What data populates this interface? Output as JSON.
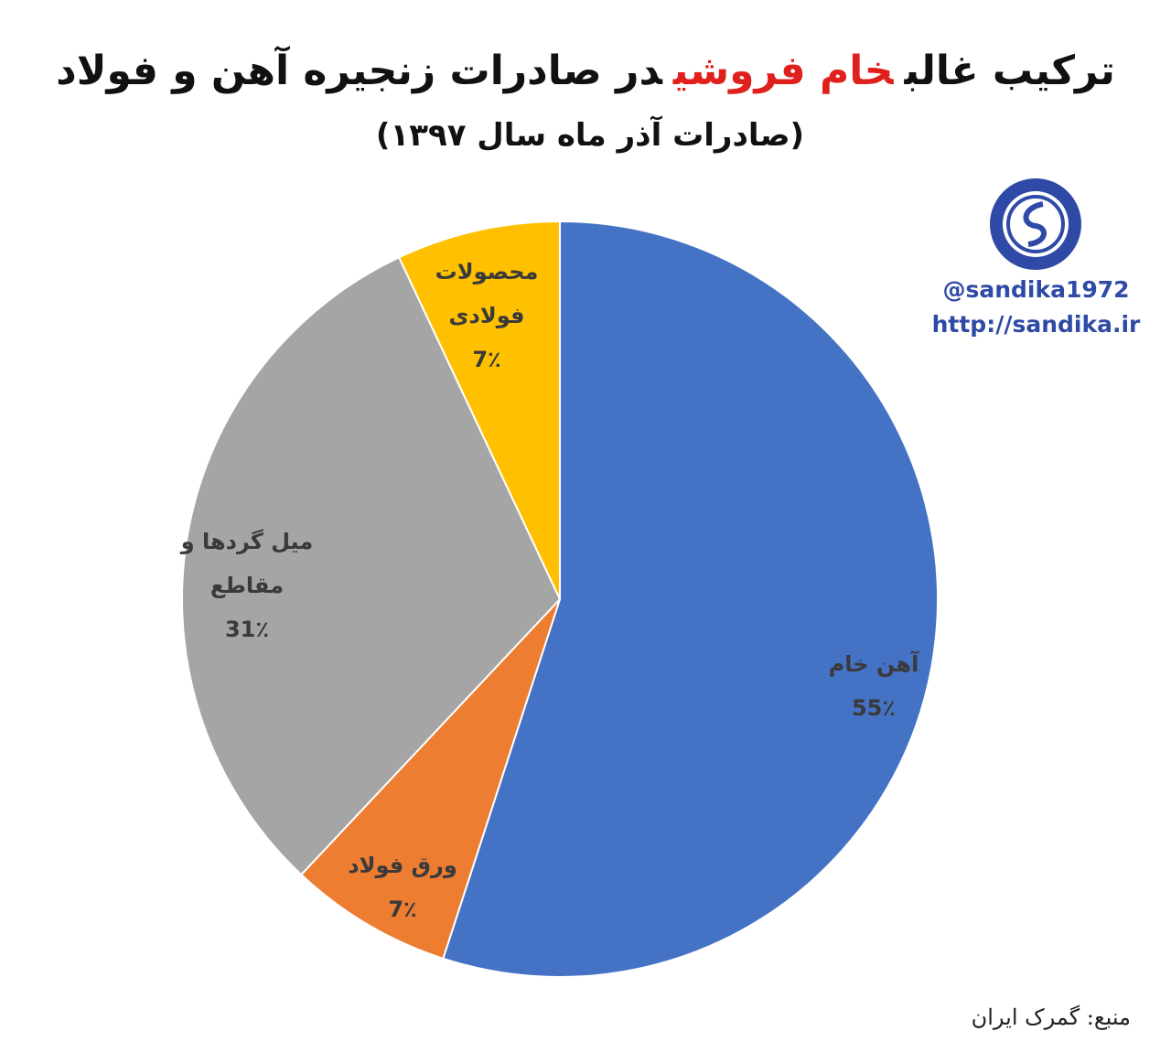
{
  "chart_data": {
    "type": "pie",
    "title": [
      "ترکیب غالب",
      "خام فروشی",
      "در صادرات زنجیره آهن و فولاد"
    ],
    "title_highlight": 1,
    "title_highlight_color": "#e0201c",
    "subtitle": "(صادرات آذر ماه سال ۱۳۹۷)",
    "categories": [
      "آهن خام",
      "ورق فولاد",
      "میل گردها و مقاطع",
      "محصولات فولادی"
    ],
    "values": [
      55,
      7,
      31,
      7
    ],
    "value_labels": [
      "55٪",
      "7٪",
      "31٪",
      "7٪"
    ],
    "colors": [
      "#4472c4",
      "#ed7d31",
      "#a5a5a5",
      "#ffc000"
    ],
    "startangle": 90,
    "direction": "clockwise",
    "watermark": [
      "@sandika1972",
      "http://sandika.ir"
    ],
    "source": "منبع: گمرک ایران"
  }
}
